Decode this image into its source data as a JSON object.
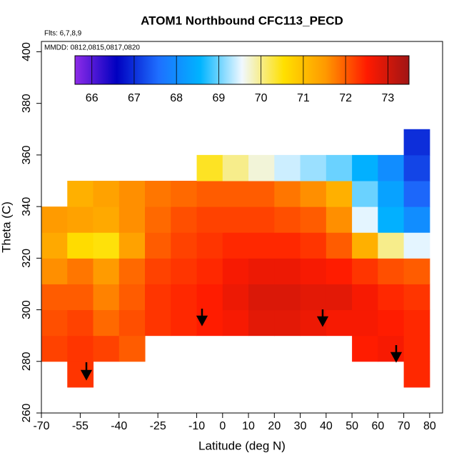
{
  "chart_data": {
    "type": "heatmap",
    "title": "ATOM1 Northbound CFC113_PECD",
    "annotations": [
      "Flts: 6,7,8,9",
      "MMDD: 0812,0815,0817,0820"
    ],
    "x_label": "Latitude (deg N)",
    "y_label": "Theta (C)",
    "xlim": [
      -70,
      85
    ],
    "ylim": [
      260,
      404
    ],
    "xticks": [
      -70,
      -55,
      -40,
      -25,
      -10,
      0,
      10,
      20,
      30,
      40,
      50,
      60,
      70,
      80
    ],
    "yticks": [
      260,
      280,
      300,
      320,
      340,
      360,
      380,
      400
    ],
    "x_edges": [
      -70,
      -60,
      -50,
      -40,
      -30,
      -20,
      -10,
      0,
      10,
      20,
      30,
      40,
      50,
      60,
      70,
      80
    ],
    "y_edges": [
      270,
      280,
      290,
      300,
      310,
      320,
      330,
      340,
      350,
      360,
      370
    ],
    "values": [
      [
        null,
        72.3,
        null,
        null,
        null,
        null,
        null,
        null,
        null,
        null,
        null,
        null,
        null,
        null,
        72.4
      ],
      [
        72.2,
        72.3,
        72.2,
        72.0,
        null,
        null,
        null,
        null,
        null,
        null,
        null,
        null,
        72.5,
        72.6,
        72.4
      ],
      [
        72.1,
        72.2,
        71.9,
        72.1,
        72.3,
        72.4,
        72.5,
        72.6,
        72.8,
        72.8,
        72.7,
        72.6,
        72.6,
        72.5,
        72.4
      ],
      [
        72.0,
        72.0,
        71.7,
        72.0,
        72.3,
        72.4,
        72.5,
        72.7,
        72.9,
        72.9,
        72.8,
        72.8,
        72.6,
        72.4,
        72.3
      ],
      [
        71.6,
        71.8,
        71.5,
        71.9,
        72.2,
        72.3,
        72.4,
        72.6,
        72.7,
        72.7,
        72.6,
        72.5,
        72.3,
        72.1,
        72.0
      ],
      [
        71.3,
        70.6,
        70.5,
        71.4,
        72.0,
        72.2,
        72.3,
        72.4,
        72.4,
        72.4,
        72.3,
        72.0,
        71.2,
        70.0,
        69.5
      ],
      [
        71.5,
        71.4,
        71.3,
        71.6,
        71.9,
        72.1,
        72.2,
        72.2,
        72.2,
        72.1,
        72.0,
        71.6,
        69.5,
        68.5,
        68.0
      ],
      [
        null,
        71.2,
        71.4,
        71.6,
        71.8,
        71.9,
        72.0,
        72.0,
        72.0,
        71.8,
        71.6,
        71.2,
        69.0,
        68.3,
        67.5
      ],
      [
        null,
        null,
        null,
        null,
        null,
        null,
        70.4,
        70.0,
        69.7,
        69.4,
        69.2,
        69.0,
        68.5,
        68.0,
        67.2
      ],
      [
        null,
        null,
        null,
        null,
        null,
        null,
        null,
        null,
        null,
        null,
        null,
        null,
        null,
        null,
        67.0
      ]
    ],
    "clim": [
      65.6,
      73.5
    ],
    "cticks": [
      66,
      67,
      68,
      69,
      70,
      71,
      72,
      73
    ],
    "colors": [
      "#8e2be8",
      "#0000c0",
      "#1e6fff",
      "#00b4ff",
      "#f0f8ff",
      "#ffe000",
      "#ff9900",
      "#ff1a00",
      "#a01515"
    ]
  }
}
